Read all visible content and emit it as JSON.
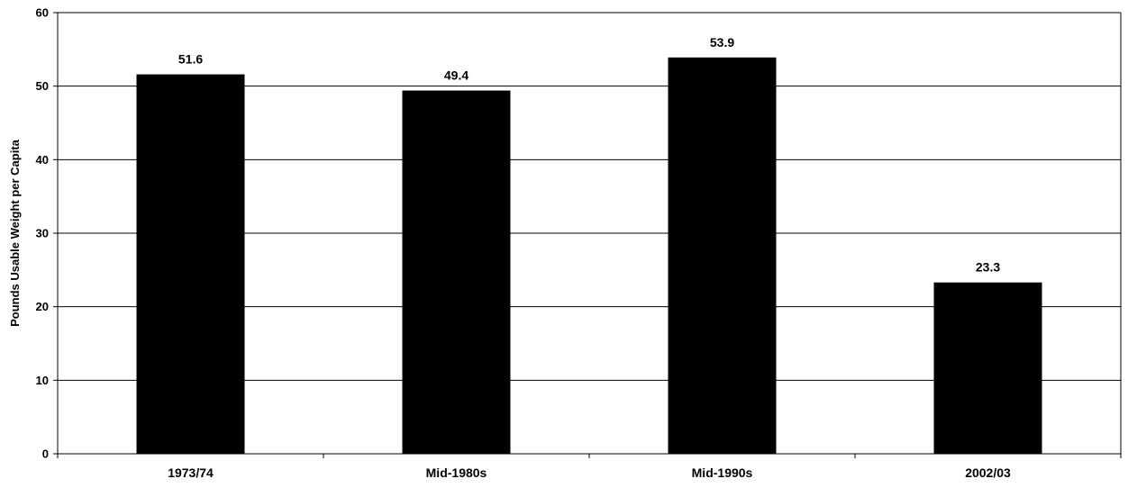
{
  "chart_data": {
    "type": "bar",
    "title": "",
    "xlabel": "",
    "ylabel": "Pounds Usable Weight per Capita",
    "categories": [
      "1973/74",
      "Mid-1980s",
      "Mid-1990s",
      "2002/03"
    ],
    "values": [
      51.6,
      49.4,
      53.9,
      23.3
    ],
    "data_labels": [
      "51.6",
      "49.4",
      "53.9",
      "23.3"
    ],
    "ylim": [
      0,
      60
    ],
    "yticks": [
      "0",
      "10",
      "20",
      "30",
      "40",
      "50",
      "60"
    ],
    "grid": "horizontal",
    "legend": "none",
    "bar_color": "#000000"
  }
}
